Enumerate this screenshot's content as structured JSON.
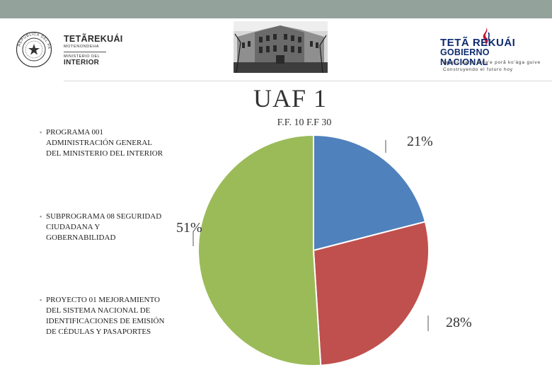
{
  "header": {
    "left_logo": {
      "brand": "TETÃREKUÁI",
      "subtitle": "MOTENONDEHA",
      "ministry_line1": "MINISTERIO DEL",
      "ministry_line2": "INTERIOR",
      "seal_text": "REPÚBLICA DEL PARAGUAY",
      "seal_icon": "national-seal-icon"
    },
    "right_logo": {
      "line1": "TETÃ REKUÁI",
      "line2": "GOBIERNO NACIONAL",
      "tagline1": "Jajapo nandi mba'e porã ko'ága guive",
      "tagline2": "Construyendo el futuro hoy",
      "accent_color": "#c8102e",
      "brand_color": "#0d2a6e"
    },
    "photo_icon": "building-photo"
  },
  "title": "UAF 1",
  "subtitle": "F.F. 10 F.F 30",
  "bullets": [
    "PROGRAMA 001 ADMINISTRACIÓN GENERAL DEL MINISTERIO DEL INTERIOR",
    "SUBPROGRAMA 08 SEGURIDAD CIUDADANA Y GOBERNABILIDAD",
    "PROYECTO 01 MEJORAMIENTO DEL SISTEMA NACIONAL DE IDENTIFICACIONES DE EMISIÓN DE CÉDULAS Y PASAPORTES"
  ],
  "chart_data": {
    "type": "pie",
    "title": "UAF 1",
    "subtitle": "F.F. 10 F.F 30",
    "slices": [
      {
        "label": "PROGRAMA 001 ADMINISTRACIÓN GENERAL DEL MINISTERIO DEL INTERIOR",
        "value": 21,
        "display": "21%",
        "color": "#4f81bd"
      },
      {
        "label": "PROYECTO 01 MEJORAMIENTO DEL SISTEMA NACIONAL DE IDENTIFICACIONES DE EMISIÓN DE CÉDULAS Y PASAPORTES",
        "value": 28,
        "display": "28%",
        "color": "#c0504d"
      },
      {
        "label": "SUBPROGRAMA 08 SEGURIDAD CIUDADANA Y GOBERNABILIDAD",
        "value": 51,
        "display": "51%",
        "color": "#9bbb59"
      }
    ],
    "start": "top",
    "direction": "clockwise",
    "legend": "left"
  }
}
